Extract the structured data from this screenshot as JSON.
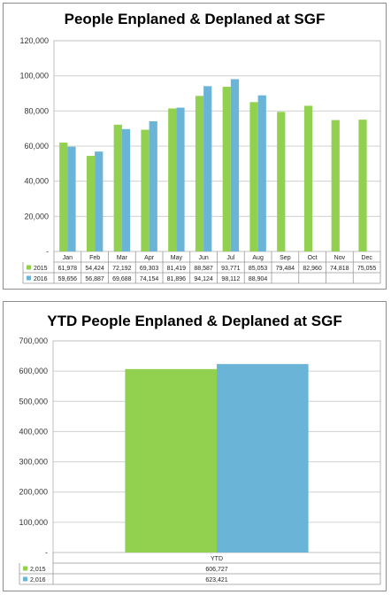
{
  "chart_data": [
    {
      "type": "bar",
      "title": "People Enplaned & Deplaned at SGF",
      "categories": [
        "Jan",
        "Feb",
        "Mar",
        "Apr",
        "May",
        "Jun",
        "Jul",
        "Aug",
        "Sep",
        "Oct",
        "Nov",
        "Dec"
      ],
      "series": [
        {
          "name": "2015",
          "color": "#92d050",
          "values": [
            61978,
            54424,
            72192,
            69303,
            81419,
            88587,
            93771,
            85053,
            79484,
            82960,
            74818,
            75055
          ],
          "labels": [
            "61,978",
            "54,424",
            "72,192",
            "69,303",
            "81,419",
            "88,587",
            "93,771",
            "85,053",
            "79,484",
            "82,960",
            "74,818",
            "75,055"
          ]
        },
        {
          "name": "2016",
          "color": "#6ab4d8",
          "values": [
            59656,
            56887,
            69688,
            74154,
            81896,
            94124,
            98112,
            88904,
            null,
            null,
            null,
            null
          ],
          "labels": [
            "59,656",
            "56,887",
            "69,688",
            "74,154",
            "81,896",
            "94,124",
            "98,112",
            "88,904",
            "",
            "",
            "",
            ""
          ]
        }
      ],
      "ylim": [
        0,
        120000
      ],
      "yticks": [
        "-",
        "20,000",
        "40,000",
        "60,000",
        "80,000",
        "100,000",
        "120,000"
      ],
      "grid": true,
      "legend": "data-table"
    },
    {
      "type": "bar",
      "title": "YTD People Enplaned & Deplaned at SGF",
      "categories": [
        "YTD"
      ],
      "series": [
        {
          "name": "2,015",
          "color": "#92d050",
          "values": [
            606727
          ],
          "labels": [
            "606,727"
          ]
        },
        {
          "name": "2,016",
          "color": "#6ab4d8",
          "values": [
            623421
          ],
          "labels": [
            "623,421"
          ]
        }
      ],
      "ylim": [
        0,
        700000
      ],
      "yticks": [
        "-",
        "100,000",
        "200,000",
        "300,000",
        "400,000",
        "500,000",
        "600,000",
        "700,000"
      ],
      "grid": true,
      "legend": "data-table"
    }
  ]
}
